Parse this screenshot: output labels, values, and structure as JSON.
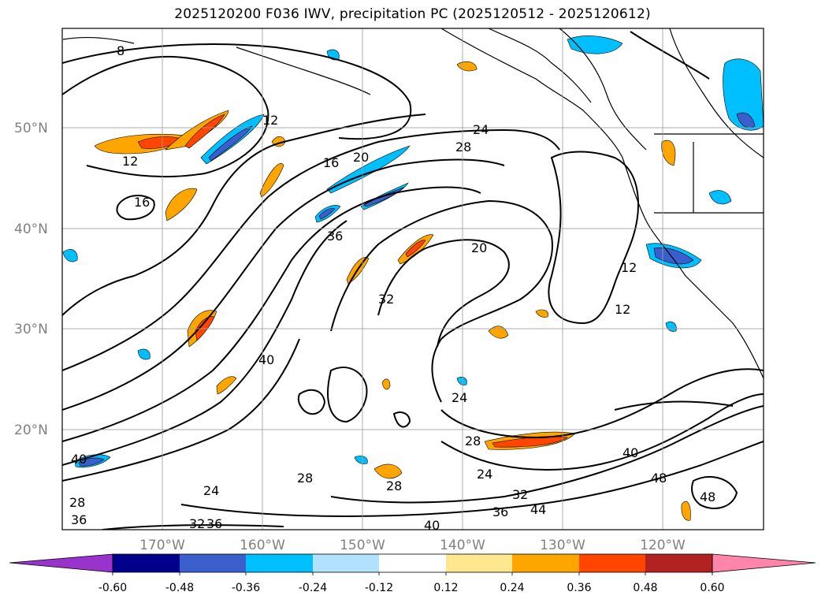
{
  "title": "2025120200 F036 IWV, precipitation PC (2025120512 - 2025120612)",
  "map": {
    "lat_labels": [
      "50°N",
      "40°N",
      "30°N",
      "20°N"
    ],
    "lon_labels": [
      "170°W",
      "160°W",
      "150°W",
      "140°W",
      "130°W",
      "120°W"
    ],
    "contour_labels": [
      "8",
      "12",
      "12",
      "16",
      "16",
      "20",
      "24",
      "28",
      "36",
      "20",
      "32",
      "12",
      "12",
      "40",
      "24",
      "28",
      "24",
      "28",
      "32",
      "36",
      "44",
      "40",
      "48",
      "48",
      "40",
      "28",
      "24",
      "28",
      "36",
      "32",
      "36",
      "40"
    ]
  },
  "colorbar": {
    "ticks": [
      "-0.60",
      "-0.48",
      "-0.36",
      "-0.24",
      "-0.12",
      "0.12",
      "0.24",
      "0.36",
      "0.48",
      "0.60"
    ],
    "colors": [
      "#9933cc",
      "#00008b",
      "#3a5fcd",
      "#00bfff",
      "#b0e2ff",
      "#ffffff",
      "#ffe78f",
      "#ffa500",
      "#ff4500",
      "#b22222",
      "#ff85aa"
    ]
  }
}
